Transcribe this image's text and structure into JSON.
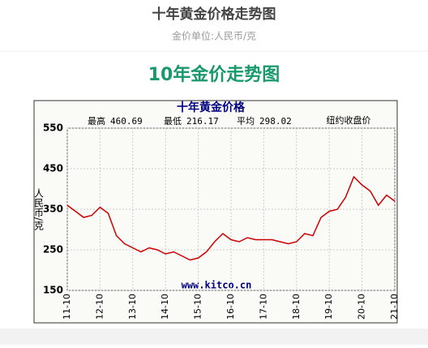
{
  "header": {
    "title": "十年黄金价格走势图",
    "subtitle": "金价单位:人民币/克"
  },
  "heading": "10年金价走势图",
  "chart_data": {
    "type": "line",
    "title": "十年黄金价格",
    "stats": [
      {
        "label": "最高",
        "value": 460.69
      },
      {
        "label": "最低",
        "value": 216.17
      },
      {
        "label": "平均",
        "value": 298.02
      }
    ],
    "note": "纽约收盘价",
    "y_label": "人民币/克",
    "watermark": "www.kitco.cn",
    "x": [
      "11-10",
      "12-01",
      "12-04",
      "12-07",
      "12-10",
      "13-01",
      "13-04",
      "13-07",
      "13-10",
      "14-01",
      "14-04",
      "14-07",
      "14-10",
      "15-01",
      "15-04",
      "15-07",
      "15-10",
      "16-01",
      "16-04",
      "16-07",
      "16-10",
      "17-01",
      "17-04",
      "17-07",
      "17-10",
      "18-01",
      "18-04",
      "18-07",
      "18-10",
      "19-01",
      "19-04",
      "19-07",
      "19-10",
      "20-01",
      "20-04",
      "20-07",
      "20-10",
      "21-01",
      "21-04",
      "21-07",
      "21-10"
    ],
    "series": [
      {
        "name": "金价",
        "color": "#cc0000",
        "values": [
          360,
          345,
          330,
          335,
          355,
          340,
          285,
          265,
          255,
          245,
          255,
          250,
          240,
          245,
          235,
          225,
          230,
          245,
          270,
          290,
          275,
          270,
          280,
          275,
          275,
          275,
          270,
          265,
          270,
          290,
          285,
          330,
          345,
          350,
          380,
          430,
          410,
          395,
          360,
          385,
          370
        ]
      }
    ],
    "xticks": [
      "11-10",
      "12-10",
      "13-10",
      "14-10",
      "15-10",
      "16-10",
      "17-10",
      "18-10",
      "19-10",
      "20-10",
      "21-10"
    ],
    "ylim": [
      150,
      550
    ],
    "yticks": [
      150,
      250,
      350,
      450,
      550
    ],
    "grid": true
  }
}
